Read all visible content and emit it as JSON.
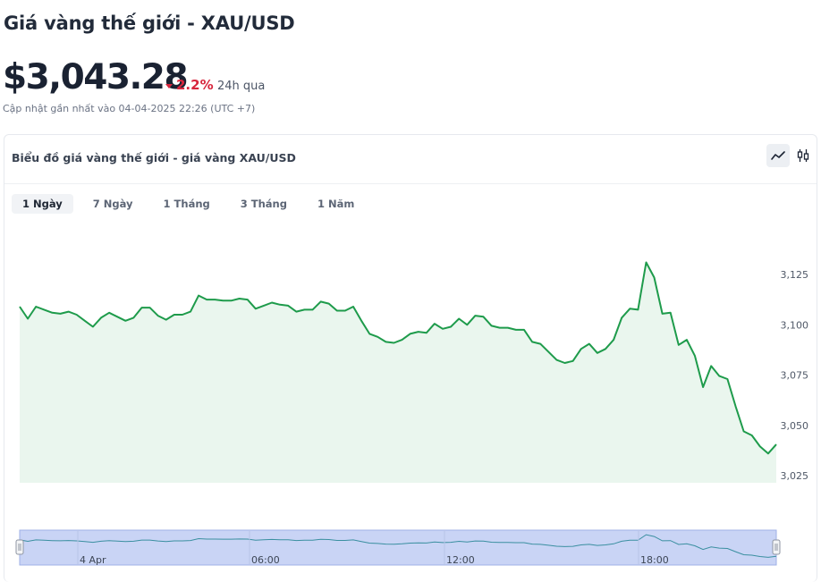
{
  "header": {
    "title": "Giá vàng thế giới - XAU/USD",
    "price": "$3,043.28",
    "change": "2.2%",
    "period": "24h qua",
    "updated": "Cập nhật gần nhất vào 04-04-2025 22:26 (UTC +7)"
  },
  "card": {
    "title": "Biểu đồ giá vàng thế giới - giá vàng XAU/USD",
    "tabs": [
      {
        "label": "1 Ngày",
        "active": true
      },
      {
        "label": "7 Ngày",
        "active": false
      },
      {
        "label": "1 Tháng",
        "active": false
      },
      {
        "label": "3 Tháng",
        "active": false
      },
      {
        "label": "1 Năm",
        "active": false
      }
    ],
    "view_toggles": [
      "line-chart-icon",
      "candlestick-icon"
    ]
  },
  "colors": {
    "line": "#1e9b4b",
    "area": "#eaf6ee",
    "negative": "#d7263d",
    "navigator_fill": "#c9d4f5",
    "navigator_line": "#3a8fa0"
  },
  "chart_data": {
    "type": "area",
    "y_ticks": [
      "3,125",
      "3,100",
      "3,075",
      "3,050",
      "3,025"
    ],
    "ylim": [
      3025,
      3137
    ],
    "x_ticks": [
      "4 Apr",
      "06:00",
      "12:00",
      "18:00"
    ],
    "values": [
      3109,
      3103,
      3109,
      3107.5,
      3106,
      3105.5,
      3106.5,
      3105,
      3102,
      3099,
      3103.5,
      3106,
      3104,
      3102,
      3103.5,
      3108.5,
      3108.5,
      3104.5,
      3102.5,
      3105,
      3105,
      3106.5,
      3114.5,
      3112.5,
      3112.5,
      3112,
      3112,
      3113,
      3112.5,
      3108,
      3109.5,
      3111,
      3110,
      3109.5,
      3106.5,
      3107.5,
      3107.5,
      3111.5,
      3110.5,
      3107,
      3107,
      3109,
      3102,
      3095.5,
      3094,
      3091.5,
      3091,
      3092.5,
      3095.5,
      3096.5,
      3096,
      3100.5,
      3098,
      3099,
      3103,
      3100,
      3104.5,
      3104,
      3099.5,
      3098.5,
      3098.5,
      3097.5,
      3097.5,
      3091.5,
      3090.5,
      3086.5,
      3082.5,
      3081,
      3082,
      3088,
      3090.5,
      3086,
      3088,
      3092.5,
      3103.5,
      3108,
      3107.5,
      3131,
      3123.5,
      3105.5,
      3106,
      3090,
      3092.5,
      3084.5,
      3069,
      3079.5,
      3074.5,
      3073,
      3059.5,
      3047,
      3045,
      3039.5,
      3036,
      3040.5
    ]
  }
}
